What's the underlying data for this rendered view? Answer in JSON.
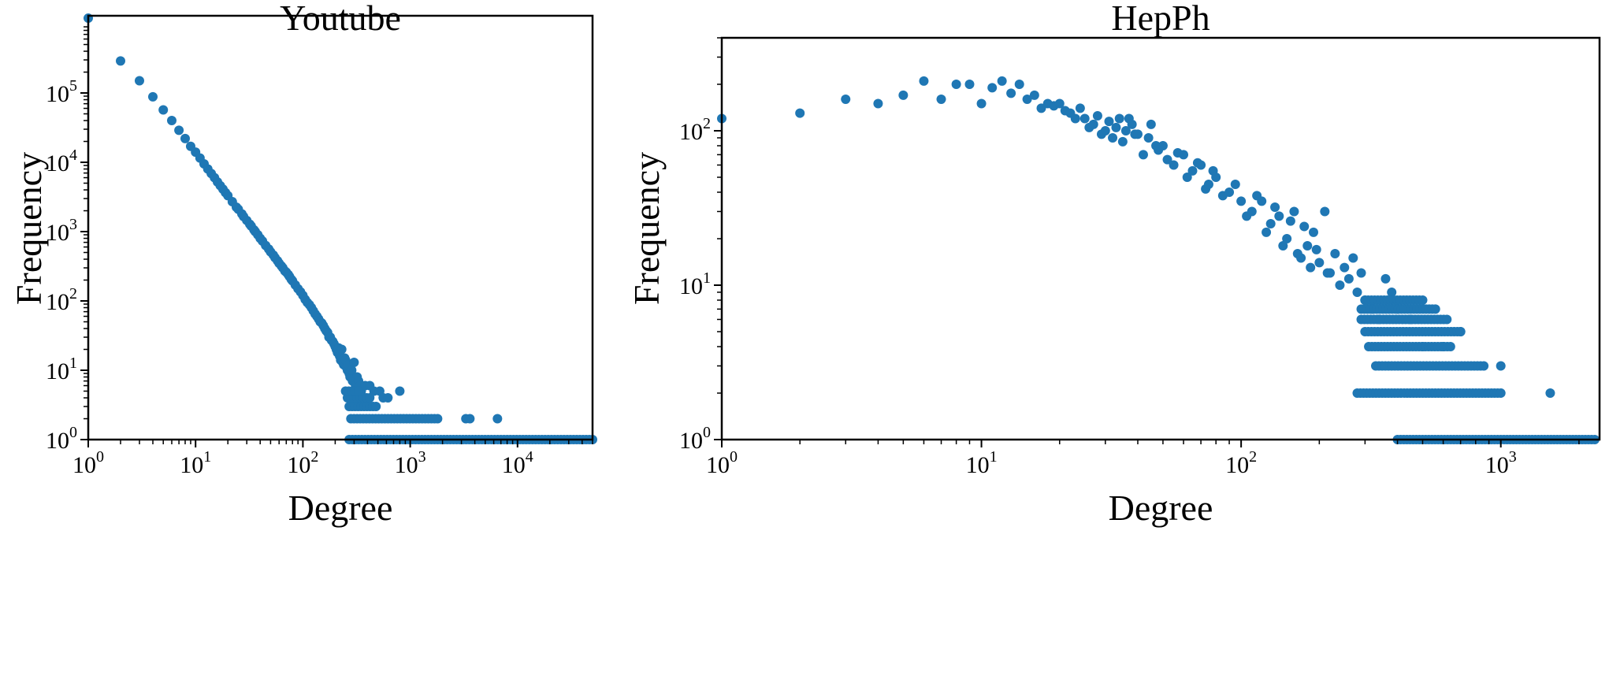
{
  "chart_data": [
    {
      "type": "scatter",
      "title": "Youtube",
      "xlabel": "Degree",
      "ylabel": "Frequency",
      "xscale": "log",
      "yscale": "log",
      "xlim": [
        1,
        50000
      ],
      "ylim": [
        1,
        1300000
      ],
      "xticks": [
        {
          "base": "10",
          "exp": "0",
          "value": 1
        },
        {
          "base": "10",
          "exp": "1",
          "value": 10
        },
        {
          "base": "10",
          "exp": "2",
          "value": 100
        },
        {
          "base": "10",
          "exp": "3",
          "value": 1000
        },
        {
          "base": "10",
          "exp": "4",
          "value": 10000
        }
      ],
      "yticks": [
        {
          "base": "10",
          "exp": "0",
          "value": 1
        },
        {
          "base": "10",
          "exp": "1",
          "value": 10
        },
        {
          "base": "10",
          "exp": "2",
          "value": 100
        },
        {
          "base": "10",
          "exp": "3",
          "value": 1000
        },
        {
          "base": "10",
          "exp": "4",
          "value": 10000
        },
        {
          "base": "10",
          "exp": "5",
          "value": 100000
        }
      ],
      "color": "#1f77b4",
      "points": [
        [
          1,
          1200000
        ],
        [
          2,
          290000
        ],
        [
          3,
          150000
        ],
        [
          4,
          88000
        ],
        [
          5,
          57000
        ],
        [
          6,
          40000
        ],
        [
          7,
          29000
        ],
        [
          8,
          22000
        ],
        [
          9,
          17000
        ],
        [
          10,
          14000
        ],
        [
          11,
          11500
        ],
        [
          12,
          9500
        ],
        [
          13,
          8000
        ],
        [
          14,
          6900
        ],
        [
          15,
          6000
        ],
        [
          16,
          5200
        ],
        [
          17,
          4600
        ],
        [
          18,
          4100
        ],
        [
          19,
          3650
        ],
        [
          20,
          3300
        ],
        [
          22,
          2700
        ],
        [
          24,
          2250
        ],
        [
          25,
          2100
        ],
        [
          27,
          1800
        ],
        [
          28,
          1650
        ],
        [
          30,
          1450
        ],
        [
          32,
          1280
        ],
        [
          33,
          1200
        ],
        [
          35,
          1060
        ],
        [
          36,
          1000
        ],
        [
          38,
          900
        ],
        [
          40,
          800
        ],
        [
          42,
          730
        ],
        [
          45,
          630
        ],
        [
          48,
          560
        ],
        [
          50,
          510
        ],
        [
          53,
          460
        ],
        [
          55,
          420
        ],
        [
          58,
          380
        ],
        [
          60,
          350
        ],
        [
          63,
          320
        ],
        [
          65,
          300
        ],
        [
          68,
          270
        ],
        [
          70,
          260
        ],
        [
          73,
          240
        ],
        [
          75,
          225
        ],
        [
          78,
          205
        ],
        [
          80,
          195
        ],
        [
          85,
          170
        ],
        [
          90,
          150
        ],
        [
          95,
          135
        ],
        [
          100,
          120
        ],
        [
          105,
          105
        ],
        [
          110,
          95
        ],
        [
          115,
          88
        ],
        [
          120,
          80
        ],
        [
          125,
          72
        ],
        [
          130,
          65
        ],
        [
          135,
          60
        ],
        [
          140,
          55
        ],
        [
          145,
          50
        ],
        [
          150,
          48
        ],
        [
          155,
          44
        ],
        [
          160,
          40
        ],
        [
          165,
          37
        ],
        [
          170,
          35
        ],
        [
          175,
          30
        ],
        [
          180,
          30
        ],
        [
          185,
          27
        ],
        [
          190,
          26
        ],
        [
          195,
          24
        ],
        [
          200,
          22
        ],
        [
          205,
          20
        ],
        [
          210,
          18
        ],
        [
          215,
          21
        ],
        [
          220,
          16
        ],
        [
          225,
          14
        ],
        [
          230,
          20
        ],
        [
          235,
          13
        ],
        [
          240,
          12
        ],
        [
          245,
          15
        ],
        [
          250,
          14
        ],
        [
          255,
          11
        ],
        [
          260,
          10
        ],
        [
          265,
          12
        ],
        [
          270,
          9
        ],
        [
          275,
          8
        ],
        [
          280,
          8
        ],
        [
          285,
          10
        ],
        [
          290,
          7
        ],
        [
          300,
          13
        ],
        [
          310,
          6
        ],
        [
          320,
          8
        ],
        [
          330,
          7
        ],
        [
          340,
          6
        ],
        [
          350,
          5
        ],
        [
          380,
          6
        ],
        [
          420,
          6
        ],
        [
          460,
          5
        ],
        [
          520,
          5
        ],
        [
          560,
          4
        ],
        [
          620,
          4
        ],
        [
          800,
          5
        ],
        [
          3300,
          2
        ],
        [
          3600,
          2
        ],
        [
          6500,
          2
        ]
      ],
      "bands": [
        {
          "freq": 1,
          "from": 270,
          "to": 50000
        },
        {
          "freq": 2,
          "from": 280,
          "to": 1800
        },
        {
          "freq": 3,
          "from": 270,
          "to": 480
        },
        {
          "freq": 4,
          "from": 260,
          "to": 420
        },
        {
          "freq": 5,
          "from": 250,
          "to": 330
        }
      ]
    },
    {
      "type": "scatter",
      "title": "HepPh",
      "xlabel": "Degree",
      "ylabel": "Frequency",
      "xscale": "log",
      "yscale": "log",
      "xlim": [
        1,
        2400
      ],
      "ylim": [
        1,
        400
      ],
      "xticks": [
        {
          "base": "10",
          "exp": "0",
          "value": 1
        },
        {
          "base": "10",
          "exp": "1",
          "value": 10
        },
        {
          "base": "10",
          "exp": "2",
          "value": 100
        },
        {
          "base": "10",
          "exp": "3",
          "value": 1000
        }
      ],
      "yticks": [
        {
          "base": "10",
          "exp": "0",
          "value": 1
        },
        {
          "base": "10",
          "exp": "1",
          "value": 10
        },
        {
          "base": "10",
          "exp": "2",
          "value": 100
        }
      ],
      "color": "#1f77b4",
      "points": [
        [
          1,
          120
        ],
        [
          2,
          130
        ],
        [
          3,
          160
        ],
        [
          4,
          150
        ],
        [
          5,
          170
        ],
        [
          6,
          210
        ],
        [
          7,
          160
        ],
        [
          8,
          200
        ],
        [
          9,
          200
        ],
        [
          10,
          150
        ],
        [
          11,
          190
        ],
        [
          12,
          210
        ],
        [
          13,
          175
        ],
        [
          14,
          200
        ],
        [
          15,
          160
        ],
        [
          16,
          170
        ],
        [
          17,
          140
        ],
        [
          18,
          150
        ],
        [
          19,
          145
        ],
        [
          20,
          150
        ],
        [
          21,
          135
        ],
        [
          22,
          130
        ],
        [
          23,
          120
        ],
        [
          24,
          140
        ],
        [
          25,
          120
        ],
        [
          26,
          105
        ],
        [
          27,
          110
        ],
        [
          28,
          125
        ],
        [
          29,
          95
        ],
        [
          30,
          100
        ],
        [
          31,
          115
        ],
        [
          32,
          90
        ],
        [
          33,
          105
        ],
        [
          34,
          120
        ],
        [
          35,
          85
        ],
        [
          36,
          100
        ],
        [
          37,
          120
        ],
        [
          38,
          110
        ],
        [
          39,
          95
        ],
        [
          40,
          95
        ],
        [
          42,
          70
        ],
        [
          44,
          90
        ],
        [
          45,
          110
        ],
        [
          47,
          80
        ],
        [
          48,
          75
        ],
        [
          50,
          80
        ],
        [
          52,
          65
        ],
        [
          55,
          60
        ],
        [
          57,
          72
        ],
        [
          60,
          70
        ],
        [
          62,
          50
        ],
        [
          65,
          55
        ],
        [
          68,
          62
        ],
        [
          70,
          60
        ],
        [
          73,
          42
        ],
        [
          75,
          45
        ],
        [
          78,
          55
        ],
        [
          80,
          50
        ],
        [
          85,
          38
        ],
        [
          90,
          40
        ],
        [
          95,
          45
        ],
        [
          100,
          35
        ],
        [
          105,
          28
        ],
        [
          110,
          30
        ],
        [
          115,
          38
        ],
        [
          120,
          35
        ],
        [
          125,
          22
        ],
        [
          130,
          25
        ],
        [
          135,
          32
        ],
        [
          140,
          28
        ],
        [
          145,
          18
        ],
        [
          150,
          20
        ],
        [
          155,
          26
        ],
        [
          160,
          30
        ],
        [
          165,
          16
        ],
        [
          170,
          15
        ],
        [
          175,
          24
        ],
        [
          180,
          18
        ],
        [
          185,
          13
        ],
        [
          190,
          22
        ],
        [
          195,
          17
        ],
        [
          200,
          14
        ],
        [
          210,
          30
        ],
        [
          215,
          12
        ],
        [
          220,
          12
        ],
        [
          230,
          16
        ],
        [
          240,
          10
        ],
        [
          250,
          13
        ],
        [
          260,
          11
        ],
        [
          270,
          15
        ],
        [
          280,
          9
        ],
        [
          290,
          12
        ],
        [
          300,
          8
        ],
        [
          320,
          7
        ],
        [
          340,
          6
        ],
        [
          360,
          11
        ],
        [
          380,
          9
        ],
        [
          400,
          7
        ],
        [
          450,
          6
        ],
        [
          500,
          4
        ],
        [
          600,
          4
        ],
        [
          700,
          5
        ],
        [
          1000,
          3
        ],
        [
          1550,
          2
        ]
      ],
      "bands": [
        {
          "freq": 1,
          "from": 400,
          "to": 2300
        },
        {
          "freq": 2,
          "from": 280,
          "to": 1000
        },
        {
          "freq": 3,
          "from": 330,
          "to": 860
        },
        {
          "freq": 4,
          "from": 310,
          "to": 640
        },
        {
          "freq": 5,
          "from": 300,
          "to": 700
        },
        {
          "freq": 6,
          "from": 290,
          "to": 620
        },
        {
          "freq": 7,
          "from": 290,
          "to": 560
        },
        {
          "freq": 8,
          "from": 300,
          "to": 500
        }
      ]
    }
  ]
}
